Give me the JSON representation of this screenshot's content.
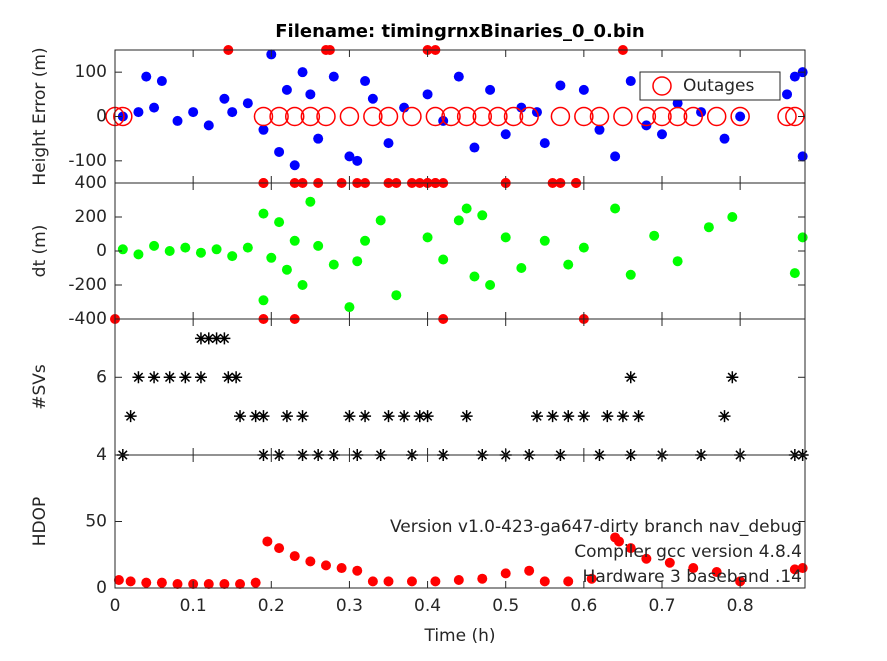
{
  "chart_data": [
    {
      "type": "scatter",
      "title": "Filename: timingrnxBinaries_0_0.bin",
      "ylabel": "Height Error (m)",
      "ylim": [
        -150,
        150
      ],
      "yticks": [
        -100,
        0,
        100
      ],
      "legend": "upper right",
      "series": [
        {
          "color": "#0000ff",
          "marker": "filled",
          "x": [
            0.01,
            0.03,
            0.04,
            0.05,
            0.06,
            0.08,
            0.1,
            0.12,
            0.14,
            0.15,
            0.17,
            0.19,
            0.2,
            0.21,
            0.22,
            0.23,
            0.24,
            0.25,
            0.26,
            0.28,
            0.3,
            0.31,
            0.32,
            0.33,
            0.35,
            0.37,
            0.4,
            0.42,
            0.44,
            0.46,
            0.48,
            0.5,
            0.52,
            0.54,
            0.55,
            0.57,
            0.6,
            0.62,
            0.64,
            0.66,
            0.68,
            0.7,
            0.72,
            0.75,
            0.78,
            0.8,
            0.86,
            0.87,
            0.88,
            0.88
          ],
          "values": [
            0,
            10,
            90,
            20,
            80,
            -10,
            10,
            -20,
            40,
            10,
            30,
            -30,
            140,
            -80,
            60,
            -110,
            100,
            50,
            -50,
            90,
            -90,
            -100,
            80,
            40,
            -60,
            20,
            50,
            -10,
            90,
            -70,
            60,
            -40,
            20,
            10,
            -60,
            70,
            60,
            -30,
            -90,
            80,
            -20,
            -40,
            30,
            10,
            -50,
            0,
            50,
            90,
            -90,
            100
          ]
        },
        {
          "name": "Outages",
          "color": "#ff0000",
          "marker": "open",
          "x": [
            0.0,
            0.01,
            0.19,
            0.21,
            0.23,
            0.25,
            0.27,
            0.3,
            0.33,
            0.35,
            0.38,
            0.41,
            0.43,
            0.45,
            0.47,
            0.49,
            0.51,
            0.53,
            0.57,
            0.6,
            0.62,
            0.65,
            0.68,
            0.7,
            0.72,
            0.74,
            0.77,
            0.8,
            0.86,
            0.87
          ],
          "values": [
            0,
            0,
            0,
            0,
            0,
            0,
            0,
            0,
            0,
            0,
            0,
            0,
            0,
            0,
            0,
            0,
            0,
            0,
            0,
            0,
            0,
            0,
            0,
            0,
            0,
            0,
            0,
            0,
            0,
            0
          ]
        },
        {
          "color": "#ff0000",
          "marker": "filled",
          "x": [
            0.145,
            0.27,
            0.275,
            0.4,
            0.41,
            0.65,
            0.19,
            0.23,
            0.26,
            0.31,
            0.35,
            0.39,
            0.4,
            0.41,
            0.42,
            0.5,
            0.57,
            0.59
          ],
          "values": [
            150,
            150,
            150,
            150,
            150,
            150,
            -150,
            -150,
            -150,
            -150,
            -150,
            -150,
            -150,
            -150,
            -150,
            -150,
            -150,
            -150
          ]
        }
      ]
    },
    {
      "type": "scatter",
      "ylabel": "dt (m)",
      "ylim": [
        -400,
        400
      ],
      "yticks": [
        -400,
        -200,
        0,
        200,
        400
      ],
      "series": [
        {
          "color": "#00ff00",
          "marker": "filled",
          "x": [
            0.01,
            0.03,
            0.05,
            0.07,
            0.09,
            0.11,
            0.13,
            0.15,
            0.17,
            0.19,
            0.19,
            0.2,
            0.21,
            0.22,
            0.23,
            0.24,
            0.25,
            0.26,
            0.28,
            0.3,
            0.31,
            0.32,
            0.34,
            0.36,
            0.4,
            0.42,
            0.44,
            0.45,
            0.46,
            0.47,
            0.48,
            0.5,
            0.52,
            0.55,
            0.58,
            0.6,
            0.64,
            0.66,
            0.69,
            0.72,
            0.76,
            0.79,
            0.87,
            0.88
          ],
          "values": [
            10,
            -20,
            30,
            0,
            20,
            -10,
            10,
            -30,
            20,
            220,
            -290,
            -40,
            170,
            -110,
            60,
            -200,
            290,
            30,
            -80,
            -330,
            -60,
            60,
            180,
            -260,
            80,
            -50,
            180,
            250,
            -150,
            210,
            -200,
            80,
            -100,
            60,
            -80,
            20,
            250,
            -140,
            90,
            -60,
            140,
            200,
            -130,
            80
          ]
        },
        {
          "color": "#ff0000",
          "marker": "filled",
          "x": [
            0.19,
            0.24,
            0.29,
            0.32,
            0.36,
            0.38,
            0.4,
            0.41,
            0.5,
            0.56,
            0.59,
            0.0,
            0.19,
            0.23,
            0.42,
            0.6
          ],
          "values": [
            400,
            400,
            400,
            400,
            400,
            400,
            400,
            400,
            400,
            400,
            400,
            -400,
            -400,
            -400,
            -400,
            -400
          ]
        }
      ]
    },
    {
      "type": "scatter",
      "ylabel": "#SVs",
      "ylim": [
        4,
        7.5
      ],
      "yticks": [
        4,
        6
      ],
      "series": [
        {
          "color": "#000000",
          "marker": "star",
          "x": [
            0.11,
            0.12,
            0.13,
            0.14,
            0.03,
            0.05,
            0.07,
            0.09,
            0.11,
            0.145,
            0.155,
            0.66,
            0.79,
            0.02,
            0.16,
            0.18,
            0.19,
            0.22,
            0.24,
            0.3,
            0.32,
            0.35,
            0.37,
            0.39,
            0.4,
            0.45,
            0.54,
            0.56,
            0.58,
            0.6,
            0.63,
            0.65,
            0.67,
            0.78,
            0.01,
            0.19,
            0.21,
            0.24,
            0.26,
            0.28,
            0.31,
            0.34,
            0.38,
            0.42,
            0.47,
            0.5,
            0.53,
            0.57,
            0.62,
            0.66,
            0.7,
            0.75,
            0.8,
            0.87,
            0.88
          ],
          "values": [
            7,
            7,
            7,
            7,
            6,
            6,
            6,
            6,
            6,
            6,
            6,
            6,
            6,
            5,
            5,
            5,
            5,
            5,
            5,
            5,
            5,
            5,
            5,
            5,
            5,
            5,
            5,
            5,
            5,
            5,
            5,
            5,
            5,
            5,
            4,
            4,
            4,
            4,
            4,
            4,
            4,
            4,
            4,
            4,
            4,
            4,
            4,
            4,
            4,
            4,
            4,
            4,
            4,
            4,
            4
          ]
        }
      ]
    },
    {
      "type": "scatter",
      "ylabel": "HDOP",
      "xlabel": "Time (h)",
      "ylim": [
        0,
        100
      ],
      "yticks": [
        0,
        50
      ],
      "xlim": [
        0,
        0.883
      ],
      "xticks": [
        0,
        0.1,
        0.2,
        0.3,
        0.4,
        0.5,
        0.6,
        0.7,
        0.8
      ],
      "annotations": [
        "Version v1.0-423-ga647-dirty branch nav_debug",
        "Compiler gcc version 4.8.4",
        "Hardware 3 baseband .14"
      ],
      "series": [
        {
          "color": "#ff0000",
          "marker": "filled",
          "x": [
            0.005,
            0.02,
            0.04,
            0.06,
            0.08,
            0.1,
            0.12,
            0.14,
            0.16,
            0.18,
            0.195,
            0.21,
            0.23,
            0.25,
            0.27,
            0.29,
            0.31,
            0.33,
            0.35,
            0.38,
            0.41,
            0.44,
            0.47,
            0.5,
            0.53,
            0.55,
            0.58,
            0.61,
            0.64,
            0.645,
            0.66,
            0.68,
            0.71,
            0.74,
            0.77,
            0.8,
            0.87,
            0.88
          ],
          "values": [
            6,
            5,
            4,
            4,
            3,
            3,
            3,
            3,
            3,
            4,
            35,
            30,
            24,
            20,
            17,
            15,
            13,
            5,
            5,
            5,
            5,
            6,
            7,
            11,
            13,
            5,
            5,
            7,
            38,
            35,
            30,
            22,
            19,
            15,
            12,
            5,
            14,
            15
          ]
        }
      ]
    }
  ]
}
